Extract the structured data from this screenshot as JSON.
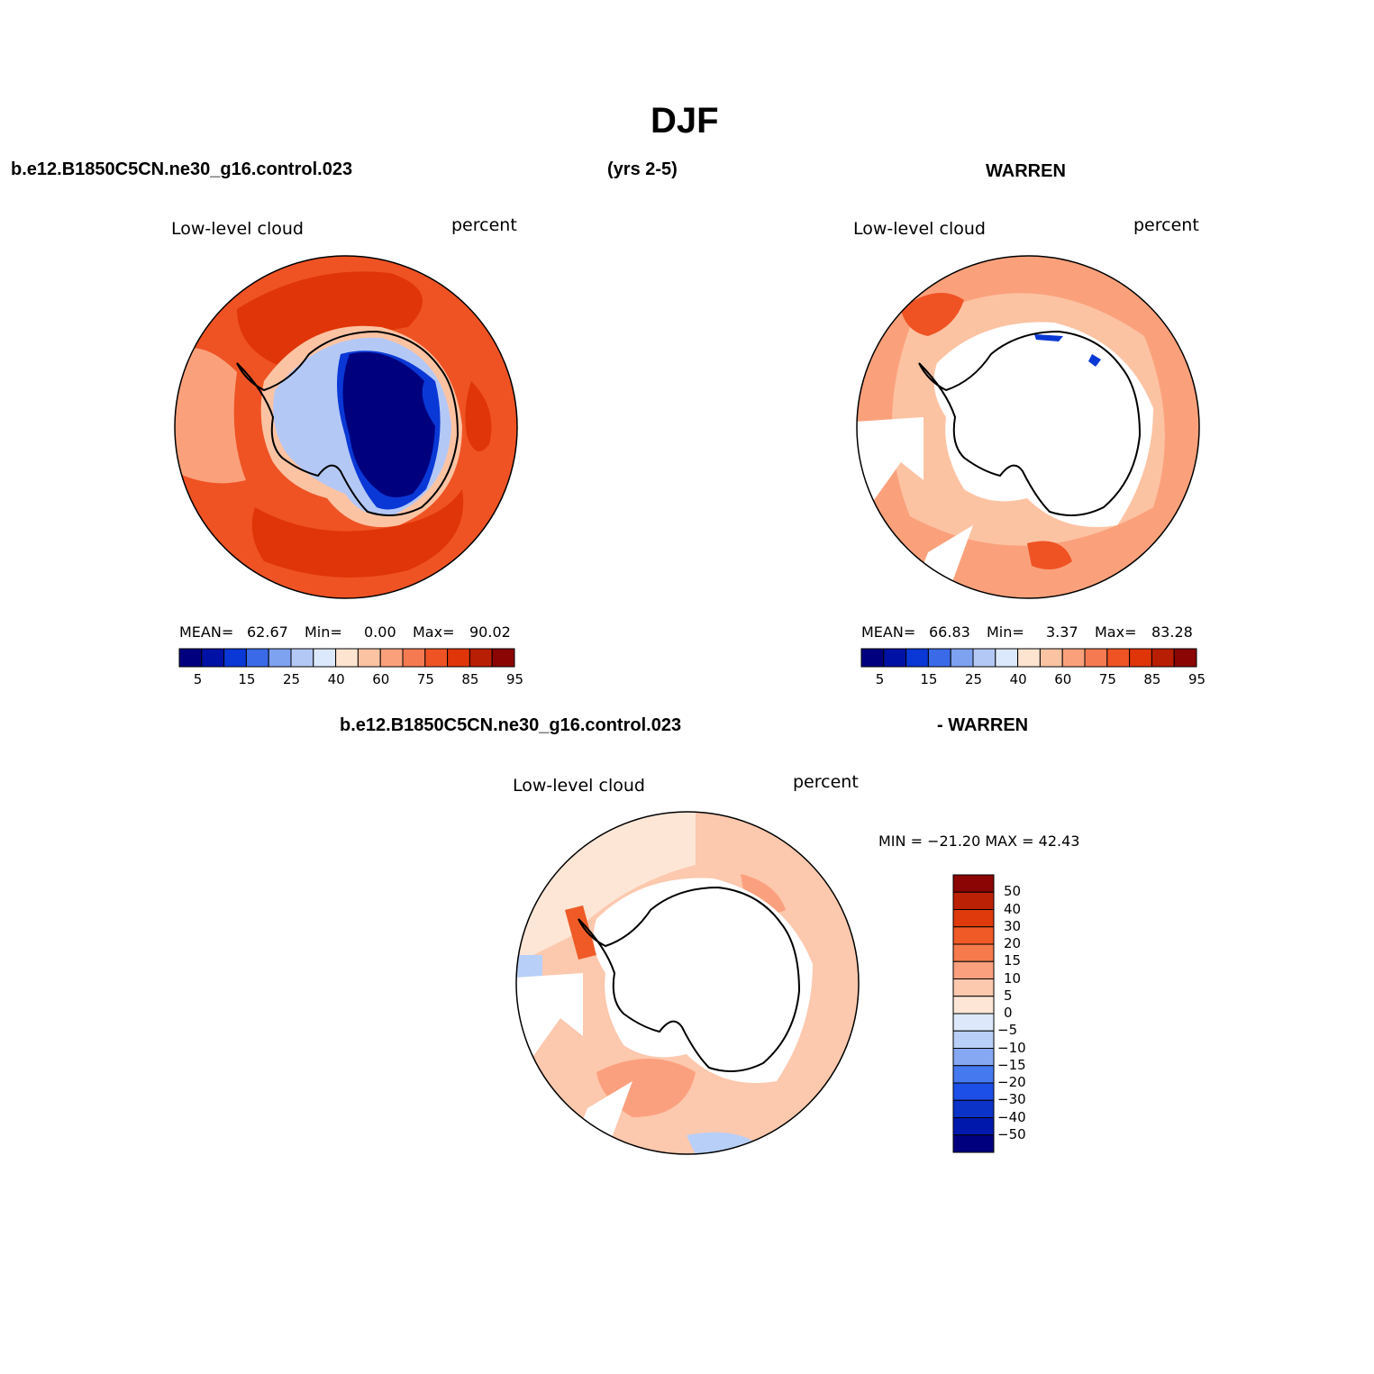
{
  "page": {
    "title": "DJF",
    "case_name": "b.e12.B1850C5CN.ne30_g16.control.023",
    "years": "(yrs 2-5)",
    "obs_name": "WARREN",
    "diff_case_name": "b.e12.B1850C5CN.ne30_g16.control.023",
    "diff_obs_name": "- WARREN"
  },
  "panels": {
    "model": {
      "variable": "Low-level cloud",
      "units": "percent",
      "stats": {
        "mean_label": "MEAN=",
        "mean": "62.67",
        "min_label": "Min=",
        "min": "0.00",
        "max_label": "Max=",
        "max": "90.02"
      }
    },
    "obs": {
      "variable": "Low-level cloud",
      "units": "percent",
      "stats": {
        "mean_label": "MEAN=",
        "mean": "66.83",
        "min_label": "Min=",
        "min": "3.37",
        "max_label": "Max=",
        "max": "83.28"
      }
    },
    "diff": {
      "variable": "Low-level cloud",
      "units": "percent",
      "minmax": "MIN = −21.20 MAX =  42.43"
    }
  },
  "colorbars": {
    "main": {
      "colors": [
        "#00007f",
        "#0012a5",
        "#0a38d6",
        "#3a6ae8",
        "#7ea1f0",
        "#b4c8f6",
        "#dce8fb",
        "#fde4d0",
        "#fcc3a3",
        "#faa17c",
        "#f57a52",
        "#ef5324",
        "#e03508",
        "#b81e03",
        "#8a0503"
      ],
      "labels": [
        "5",
        "15",
        "25",
        "40",
        "60",
        "75",
        "85",
        "95"
      ]
    },
    "diff": {
      "colors": [
        "#00007f",
        "#0018ac",
        "#0b33c8",
        "#1c4fe8",
        "#4579f0",
        "#86a7f2",
        "#b8cff7",
        "#dde9fb",
        "#fde6d6",
        "#fcc8ae",
        "#fba07e",
        "#f57a4c",
        "#ef5a26",
        "#de3a0b",
        "#bb2104",
        "#8a0503"
      ],
      "labels": [
        "50",
        "40",
        "30",
        "20",
        "15",
        "10",
        "5",
        "0",
        "−5",
        "−10",
        "−15",
        "−20",
        "−30",
        "−40",
        "−50"
      ]
    }
  },
  "map_colors": {
    "ocean_high": "#e03508",
    "ocean_mid": "#ef5324",
    "ocean_light": "#faa17c",
    "ocean_pale": "#fcc3a3",
    "ice_blue": "#b4c8f6",
    "ice_dark": "#00007f",
    "ice_mid": "#0a38d6",
    "diff_warm": "#fcc8ae",
    "diff_warm2": "#fba07e",
    "diff_pale": "#fde6d6",
    "diff_blue": "#b8cff7",
    "diff_red": "#ef5a26",
    "missing": "#ffffff"
  }
}
